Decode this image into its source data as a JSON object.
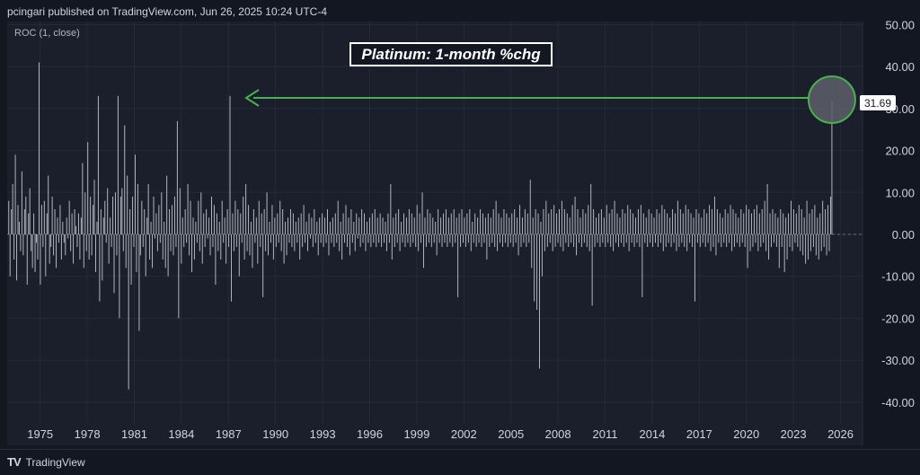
{
  "header": {
    "published_by": "pcingari published on TradingView.com, Jun 26, 2025 10:24 UTC-4"
  },
  "indicator": {
    "label": "ROC (1, close)"
  },
  "annotation": {
    "title": "Platinum: 1-month %chg"
  },
  "last_value_tag": "31.69",
  "footer": {
    "logo_mark": "TV",
    "brand": "TradingView"
  },
  "colors": {
    "background": "#131722",
    "pane": "#1b1f2b",
    "bars": "#b2b5be",
    "arrow": "#4caf50",
    "highlight_fill": "#5d606b"
  },
  "chart_data": {
    "type": "bar",
    "title": "Platinum: 1-month %chg",
    "indicator": "ROC (1, close)",
    "ylim": [
      -47,
      50
    ],
    "y_ticks": [
      "50.00",
      "40.00",
      "30.00",
      "20.00",
      "10.00",
      "0.00",
      "-10.00",
      "-20.00",
      "-30.00",
      "-40.00"
    ],
    "y_tick_values": [
      50,
      40,
      30,
      20,
      10,
      0,
      -10,
      -20,
      -30,
      -40
    ],
    "x_ticks": [
      "1975",
      "1978",
      "1981",
      "1984",
      "1987",
      "1990",
      "1993",
      "1996",
      "1999",
      "2002",
      "2005",
      "2008",
      "2011",
      "2014",
      "2017",
      "2020",
      "2023",
      "2026"
    ],
    "x_tick_years": [
      1975,
      1978,
      1981,
      1984,
      1987,
      1990,
      1993,
      1996,
      1999,
      2002,
      2005,
      2008,
      2011,
      2014,
      2017,
      2020,
      2023,
      2026
    ],
    "x_range_years": [
      1972.9,
      2027.4
    ],
    "series": [
      {
        "start_year": 1973.0,
        "step_years": 0.0833,
        "values": [
          8,
          -10,
          6,
          12,
          -6,
          19,
          -11,
          7,
          3,
          -4,
          15,
          -5,
          6,
          9,
          -12,
          5,
          11,
          -4,
          -8,
          5,
          -9,
          -2,
          -6,
          41,
          -12,
          7,
          -3,
          8,
          -10,
          5,
          14,
          -7,
          -3,
          9,
          -5,
          6,
          -8,
          4,
          -2,
          7,
          -6,
          3,
          -2,
          -5,
          4,
          -1,
          8,
          -4,
          5,
          -7,
          6,
          2,
          -3,
          5,
          -6,
          4,
          17,
          -8,
          10,
          -4,
          22,
          -6,
          9,
          -5,
          7,
          13,
          -9,
          3,
          33,
          -16,
          6,
          -11,
          4,
          8,
          -2,
          11,
          -7,
          4,
          -3,
          9,
          -14,
          10,
          -5,
          33,
          -20,
          9,
          11,
          -4,
          26,
          -8,
          14,
          -37,
          6,
          -12,
          9,
          -3,
          19,
          -9,
          12,
          -23,
          -5,
          8,
          -3,
          6,
          -10,
          4,
          12,
          -6,
          3,
          -8,
          9,
          -1,
          5,
          -4,
          7,
          -2,
          10,
          -6,
          3,
          -8,
          14,
          -10,
          6,
          -4,
          7,
          -5,
          9,
          -3,
          27,
          -20,
          11,
          -7,
          4,
          -3,
          6,
          -2,
          12,
          -5,
          8,
          -9,
          4,
          -6,
          3,
          -2,
          8,
          -4,
          10,
          -7,
          5,
          -3,
          6,
          -1,
          4,
          -5,
          9,
          -3,
          7,
          -12,
          5,
          -4,
          3,
          -6,
          8,
          -2,
          4,
          -7,
          6,
          -3,
          33,
          -16,
          5,
          -4,
          8,
          -3,
          6,
          -10,
          5,
          -2,
          9,
          -6,
          12,
          -4,
          7,
          -5,
          3,
          -8,
          6,
          -2,
          4,
          -7,
          8,
          -3,
          5,
          -15,
          6,
          -4,
          10,
          -5,
          3,
          -2,
          7,
          -6,
          4,
          -3,
          5,
          -2,
          8,
          -4,
          6,
          -7,
          3,
          -5,
          4,
          -2,
          6,
          -3,
          5,
          -4,
          3,
          -2,
          4,
          -6,
          5,
          -3,
          7,
          -2,
          3,
          -4,
          5,
          -1,
          4,
          -3,
          6,
          -2,
          3,
          -5,
          4,
          -2,
          5,
          -3,
          4,
          -2,
          6,
          -5,
          3,
          -2,
          4,
          -3,
          5,
          -2,
          8,
          -4,
          3,
          -6,
          5,
          -2,
          7,
          -3,
          4,
          -5,
          6,
          -2,
          3,
          -4,
          5,
          -1,
          4,
          -3,
          6,
          -2,
          5,
          -4,
          3,
          -2,
          4,
          -3,
          5,
          -2,
          6,
          -3,
          4,
          -2,
          5,
          -3,
          4,
          -2,
          3,
          -4,
          5,
          -2,
          12,
          -6,
          4,
          -3,
          5,
          -2,
          6,
          -4,
          3,
          -2,
          5,
          -3,
          4,
          -2,
          6,
          -3,
          5,
          -2,
          4,
          -3,
          7,
          -4,
          5,
          -2,
          10,
          -8,
          4,
          -3,
          6,
          -2,
          5,
          -3,
          4,
          -2,
          3,
          -5,
          6,
          -2,
          4,
          -3,
          5,
          -2,
          6,
          -3,
          4,
          -2,
          5,
          -3,
          6,
          -2,
          4,
          -15,
          5,
          -3,
          6,
          -2,
          4,
          -3,
          5,
          -2,
          6,
          -4,
          3,
          -2,
          5,
          -3,
          4,
          -2,
          6,
          -3,
          5,
          -2,
          4,
          -6,
          5,
          -3,
          4,
          -2,
          6,
          -3,
          8,
          -4,
          5,
          -2,
          4,
          -3,
          6,
          -2,
          5,
          -3,
          4,
          -2,
          5,
          -3,
          6,
          -2,
          4,
          -5,
          7,
          -3,
          4,
          -2,
          6,
          -3,
          5,
          -2,
          13,
          -8,
          4,
          -16,
          6,
          -18,
          5,
          -32,
          3,
          -10,
          6,
          -4,
          8,
          -3,
          5,
          -2,
          6,
          -4,
          7,
          -3,
          5,
          -2,
          6,
          -3,
          8,
          -4,
          6,
          -2,
          5,
          -3,
          4,
          -2,
          7,
          -3,
          9,
          -5,
          6,
          -2,
          4,
          -3,
          6,
          -2,
          5,
          -3,
          7,
          -4,
          12,
          -17,
          6,
          -3,
          4,
          -2,
          5,
          -3,
          6,
          -2,
          4,
          -3,
          7,
          -2,
          5,
          -3,
          6,
          -4,
          8,
          -2,
          5,
          -3,
          4,
          -2,
          6,
          -3,
          5,
          -2,
          7,
          -4,
          6,
          -2,
          5,
          -3,
          4,
          -2,
          6,
          -3,
          7,
          -15,
          5,
          -2,
          4,
          -3,
          6,
          -2,
          5,
          -3,
          4,
          -2,
          6,
          -3,
          5,
          -2,
          7,
          -4,
          6,
          -3,
          5,
          -2,
          4,
          -3,
          6,
          -2,
          5,
          -4,
          8,
          -3,
          6,
          -2,
          5,
          -3,
          7,
          -4,
          6,
          -2,
          5,
          -3,
          4,
          -16,
          6,
          -2,
          5,
          -3,
          4,
          -2,
          6,
          -3,
          5,
          -2,
          7,
          -4,
          6,
          -3,
          9,
          -5,
          6,
          -2,
          5,
          -3,
          4,
          -2,
          6,
          -3,
          5,
          -2,
          7,
          -4,
          6,
          -3,
          5,
          -2,
          4,
          -3,
          6,
          -2,
          5,
          -3,
          7,
          -8,
          6,
          -4,
          5,
          -3,
          6,
          -2,
          7,
          -4,
          5,
          -3,
          6,
          -2,
          8,
          -4,
          12,
          -6,
          5,
          -3,
          6,
          -2,
          5,
          -3,
          4,
          -8,
          6,
          -3,
          5,
          -9,
          4,
          -6,
          5,
          -3,
          8,
          -4,
          6,
          -2,
          5,
          -3,
          7,
          -4,
          6,
          -5,
          4,
          -7,
          8,
          -6,
          5,
          -4,
          6,
          -3,
          7,
          -5,
          4,
          -6,
          5,
          -4,
          8,
          -3,
          6,
          -5,
          7,
          -4,
          9,
          31.69
        ]
      }
    ],
    "last_value": 31.69
  }
}
